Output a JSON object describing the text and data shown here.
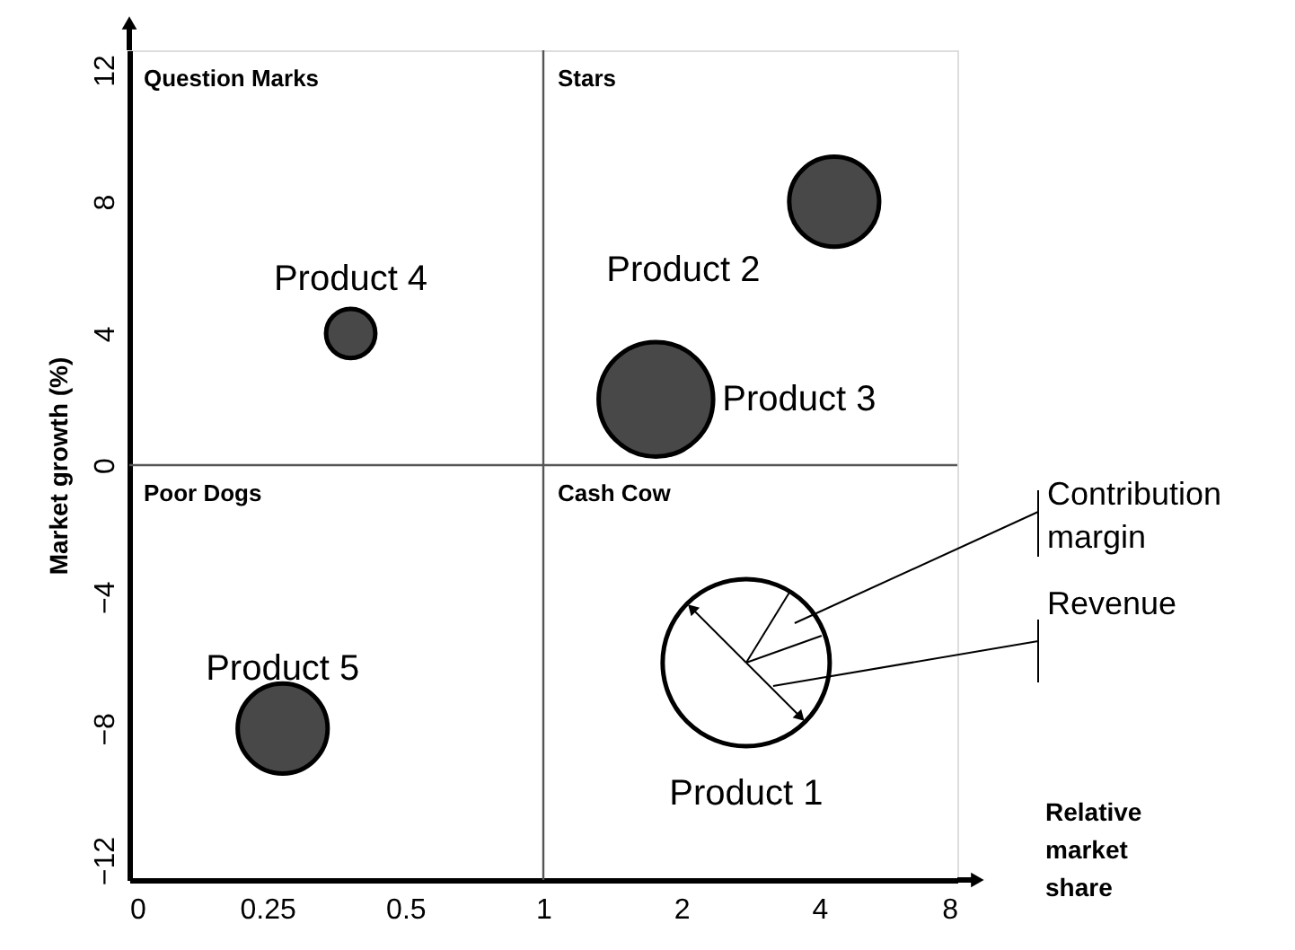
{
  "chart_data": {
    "type": "bubble",
    "xlabel": "Relative market share",
    "ylabel": "Market growth (%)",
    "log": "x",
    "xlim": [
      0.125,
      8
    ],
    "xticks": [
      {
        "value": 0.125,
        "label": "0"
      },
      0.25,
      0.5,
      1,
      2,
      4,
      8
    ],
    "ylim": [
      -12.6,
      12.6
    ],
    "yticks": [
      -12,
      -8,
      -4,
      0,
      4,
      8,
      12
    ],
    "series": [
      {
        "name": "Product 1",
        "color": "#ffffff",
        "x": [
          2.77
        ],
        "values": [
          -6
        ],
        "sizes": [
          1
        ]
      },
      {
        "name": "Product 2",
        "color": "#484848",
        "x": [
          4.31
        ],
        "values": [
          8
        ],
        "sizes": [
          0.29
        ]
      },
      {
        "name": "Product 3",
        "color": "#484848",
        "x": [
          1.76
        ],
        "values": [
          2
        ],
        "sizes": [
          0.47
        ]
      },
      {
        "name": "Product 4",
        "color": "#484848",
        "x": [
          0.38
        ],
        "values": [
          4
        ],
        "sizes": [
          0.087
        ]
      },
      {
        "name": "Product 5",
        "color": "#484848",
        "x": [
          0.27
        ],
        "values": [
          -8
        ],
        "sizes": [
          0.29
        ]
      }
    ],
    "ref_lines": [
      {
        "axis": "x",
        "value": 1,
        "color": "#555555"
      },
      {
        "axis": "y",
        "value": 0,
        "color": "#555555"
      }
    ],
    "annotations": [
      "Question Marks",
      "Stars",
      "Poor Dogs",
      "Cash Cow",
      "Contribution margin",
      "Revenue"
    ],
    "legend": false
  }
}
